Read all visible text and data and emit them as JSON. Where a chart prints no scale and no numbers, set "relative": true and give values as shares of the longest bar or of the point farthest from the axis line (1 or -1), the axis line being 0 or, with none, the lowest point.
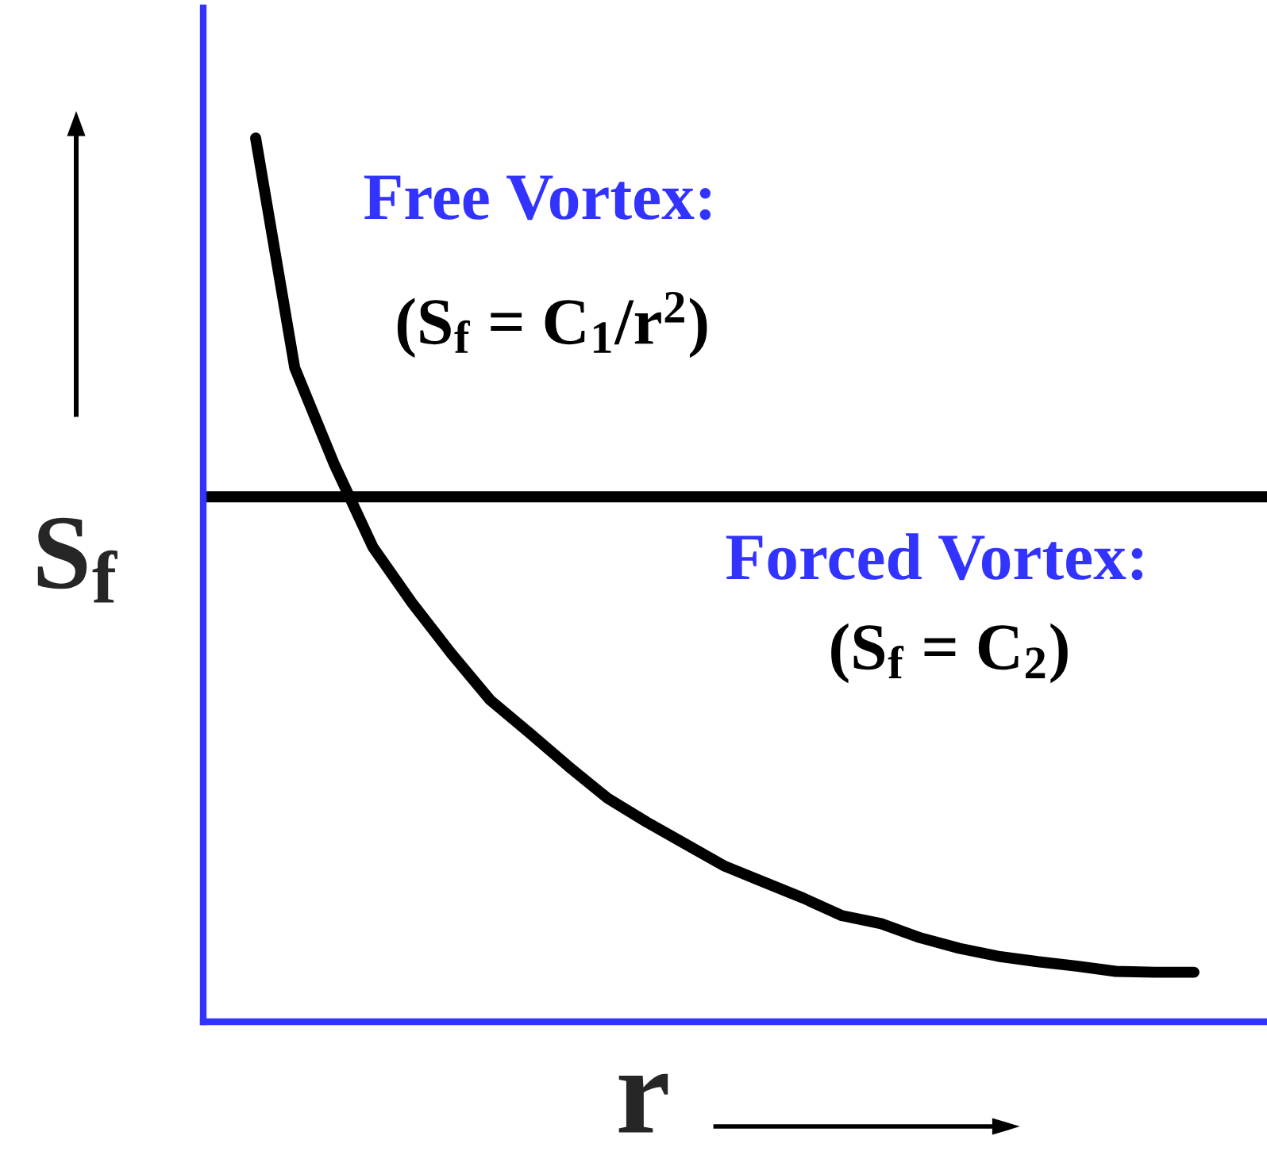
{
  "chart_data": {
    "type": "line",
    "relative": true,
    "xlabel": "r",
    "ylabel": "S$_{f}$",
    "categories": [
      null,
      null,
      null,
      null,
      null,
      null,
      null,
      null,
      null,
      null,
      null,
      null,
      null,
      null,
      null,
      null,
      null,
      null,
      null,
      null,
      null,
      null,
      null,
      null,
      null
    ],
    "series": [
      {
        "color": "#000000",
        "values": [
          1.0,
          0.74,
          0.632,
          0.537,
          0.474,
          0.417,
          0.364,
          0.327,
          0.289,
          0.253,
          0.226,
          0.201,
          0.176,
          0.158,
          0.14,
          0.12,
          0.111,
          0.095,
          0.083,
          0.074,
          0.068,
          0.063,
          0.057,
          0.056,
          0.056
        ]
      }
    ],
    "ref_lines": [
      {
        "axis": "y",
        "value": 0.594,
        "color": "#000000"
      }
    ],
    "annotations": [
      "Free Vortex:",
      "(S$_{f}$ = C$_{1}$/r$^{2}$)",
      "Forced Vortex:",
      "(S$_{f}$ = C$_{2}$)"
    ],
    "marker": "none",
    "line_style": "solid"
  }
}
